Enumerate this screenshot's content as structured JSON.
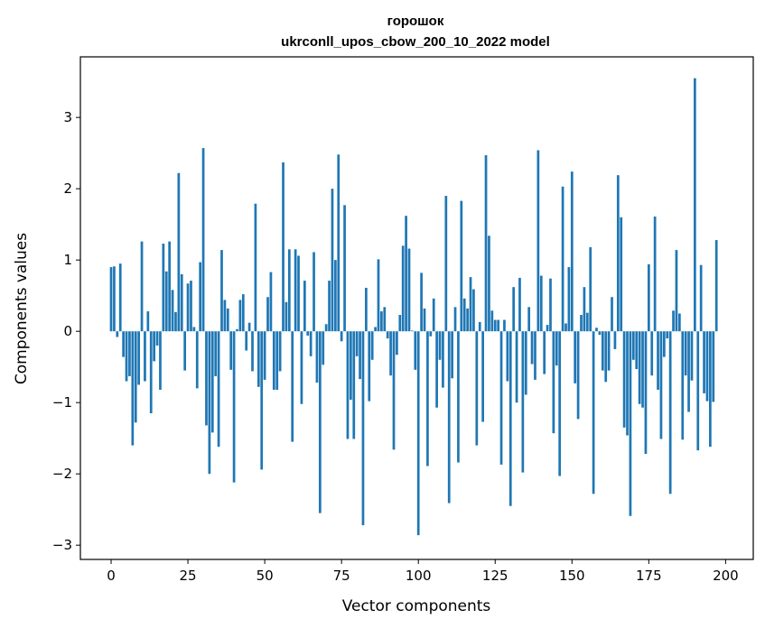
{
  "chart_data": {
    "type": "bar",
    "title": "горошок",
    "subtitle": "ukrconll_upos_cbow_200_10_2022 model",
    "xlabel": "Vector components",
    "ylabel": "Components values",
    "xlim": [
      -10,
      209
    ],
    "ylim": [
      -3.2,
      3.85
    ],
    "xticks": [
      0,
      25,
      50,
      75,
      100,
      125,
      150,
      175,
      200
    ],
    "yticks": [
      -3,
      -2,
      -1,
      0,
      1,
      2,
      3
    ],
    "bar_color": "#1f77b4",
    "values": [
      0.9,
      0.91,
      -0.08,
      0.95,
      -0.36,
      -0.7,
      -0.63,
      -1.6,
      -1.28,
      -0.75,
      1.26,
      -0.7,
      0.28,
      -1.15,
      -0.42,
      -0.2,
      -0.82,
      1.23,
      0.84,
      1.26,
      0.58,
      0.27,
      2.22,
      0.8,
      -0.55,
      0.67,
      0.71,
      0.06,
      -0.8,
      0.97,
      2.57,
      -1.32,
      -2.0,
      -1.42,
      -0.63,
      -1.62,
      1.14,
      0.44,
      0.32,
      -0.54,
      -2.12,
      0.03,
      0.44,
      0.52,
      -0.27,
      0.12,
      -0.56,
      1.79,
      -0.78,
      -1.94,
      -0.68,
      0.48,
      0.83,
      -0.82,
      -0.82,
      -0.56,
      2.37,
      0.41,
      1.15,
      -1.55,
      1.15,
      1.06,
      -1.02,
      0.71,
      -0.06,
      -0.35,
      1.11,
      -0.72,
      -2.55,
      -0.47,
      0.1,
      0.71,
      2.0,
      1.0,
      2.48,
      -0.14,
      1.77,
      -1.51,
      -0.96,
      -1.51,
      -0.35,
      -0.67,
      -2.72,
      0.61,
      -0.98,
      -0.4,
      0.06,
      1.01,
      0.28,
      0.34,
      -0.1,
      -0.62,
      -1.66,
      -0.33,
      0.23,
      1.2,
      1.62,
      1.16,
      0.01,
      -0.54,
      -2.86,
      0.82,
      0.32,
      -1.89,
      -0.07,
      0.46,
      -1.07,
      -0.4,
      -0.79,
      1.9,
      -2.41,
      -0.66,
      0.34,
      -1.84,
      1.83,
      0.46,
      0.32,
      0.76,
      0.59,
      -1.6,
      0.13,
      -1.27,
      2.47,
      1.34,
      0.29,
      0.16,
      0.16,
      -1.87,
      0.16,
      -0.7,
      -2.45,
      0.62,
      -1.0,
      0.75,
      -1.98,
      -0.89,
      0.34,
      -0.46,
      -0.68,
      2.54,
      0.78,
      -0.6,
      0.09,
      0.74,
      -1.43,
      -0.48,
      -2.03,
      2.03,
      0.11,
      0.9,
      2.24,
      -0.73,
      -1.23,
      0.23,
      0.62,
      0.26,
      1.18,
      -2.28,
      0.05,
      -0.05,
      -0.55,
      -0.71,
      -0.55,
      0.48,
      -0.25,
      2.19,
      1.6,
      -1.35,
      -1.46,
      -2.59,
      -0.4,
      -0.53,
      -1.02,
      -1.07,
      -1.72,
      0.94,
      -0.62,
      1.61,
      -0.82,
      -1.51,
      -0.36,
      -0.1,
      -2.28,
      0.29,
      1.14,
      0.25,
      -1.52,
      -0.62,
      -1.13,
      -0.69,
      3.55,
      -1.67,
      0.93,
      -0.87,
      -0.98,
      -1.62,
      -0.99,
      1.28
    ]
  }
}
